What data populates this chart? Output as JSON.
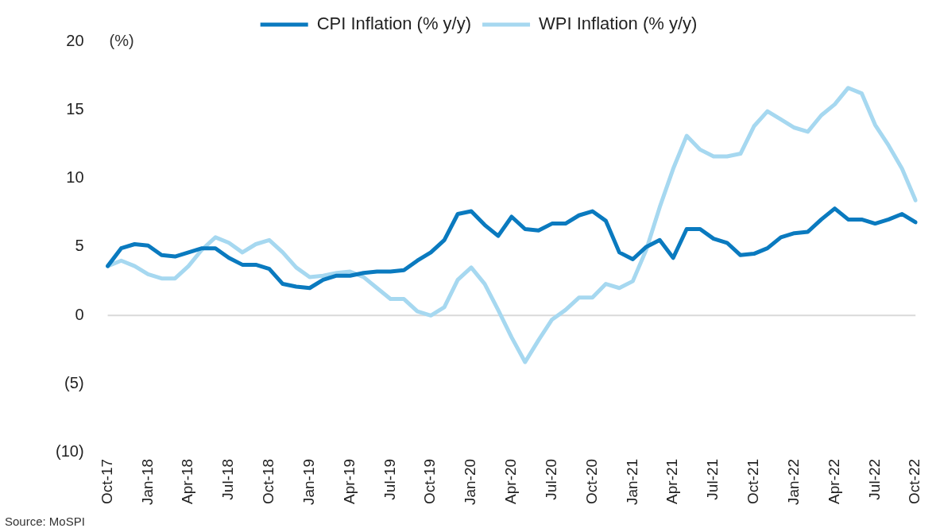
{
  "chart_data": {
    "type": "line",
    "ylabel": "(%)",
    "categories": [
      "Oct-17",
      null,
      null,
      "Jan-18",
      null,
      null,
      "Apr-18",
      null,
      null,
      "Jul-18",
      null,
      null,
      "Oct-18",
      null,
      null,
      "Jan-19",
      null,
      null,
      "Apr-19",
      null,
      null,
      "Jul-19",
      null,
      null,
      "Oct-19",
      null,
      null,
      "Jan-20",
      null,
      null,
      "Apr-20",
      null,
      null,
      "Jul-20",
      null,
      null,
      "Oct-20",
      null,
      null,
      "Jan-21",
      null,
      null,
      "Apr-21",
      null,
      null,
      "Jul-21",
      null,
      null,
      "Oct-21",
      null,
      null,
      "Jan-22",
      null,
      null,
      "Apr-22",
      null,
      null,
      "Jul-22",
      null,
      null,
      "Oct-22"
    ],
    "series": [
      {
        "name": "CPI Inflation (% y/y)",
        "color": "#0a7abf",
        "values": [
          3.6,
          4.9,
          5.2,
          5.1,
          4.4,
          4.3,
          4.6,
          4.9,
          4.9,
          4.2,
          3.7,
          3.7,
          3.4,
          2.3,
          2.1,
          2.0,
          2.6,
          2.9,
          2.9,
          3.1,
          3.2,
          3.2,
          3.3,
          4.0,
          4.6,
          5.5,
          7.4,
          7.6,
          6.6,
          5.8,
          7.2,
          6.3,
          6.2,
          6.7,
          6.7,
          7.3,
          7.6,
          6.9,
          4.6,
          4.1,
          5.0,
          5.5,
          4.2,
          6.3,
          6.3,
          5.6,
          5.3,
          4.4,
          4.5,
          4.9,
          5.7,
          6.0,
          6.1,
          7.0,
          7.8,
          7.0,
          7.0,
          6.7,
          7.0,
          7.4,
          6.8
        ]
      },
      {
        "name": "WPI Inflation (% y/y)",
        "color": "#a6d8f0",
        "values": [
          3.6,
          4.0,
          3.6,
          3.0,
          2.7,
          2.7,
          3.6,
          4.8,
          5.7,
          5.3,
          4.6,
          5.2,
          5.5,
          4.6,
          3.5,
          2.8,
          2.9,
          3.1,
          3.2,
          2.8,
          2.0,
          1.2,
          1.2,
          0.3,
          0.0,
          0.6,
          2.6,
          3.5,
          2.3,
          0.4,
          -1.6,
          -3.4,
          -1.8,
          -0.3,
          0.4,
          1.3,
          1.3,
          2.3,
          2.0,
          2.5,
          4.8,
          7.9,
          10.7,
          13.1,
          12.1,
          11.6,
          11.6,
          11.8,
          13.8,
          14.9,
          14.3,
          13.7,
          13.4,
          14.6,
          15.4,
          16.6,
          16.2,
          13.9,
          12.4,
          10.7,
          8.4
        ]
      }
    ],
    "ylim": [
      -10,
      20
    ],
    "yticks": [
      {
        "value": -10,
        "label": "(10)"
      },
      {
        "value": -5,
        "label": "(5)"
      },
      0,
      5,
      10,
      15,
      20
    ],
    "ref_lines": [
      {
        "axis": "y",
        "value": 0,
        "color": "#d9d9d9"
      }
    ],
    "grid": false,
    "legend": "top",
    "marker": "none",
    "line_style": "solid",
    "annotations": [
      "Source: MoSPI"
    ]
  }
}
